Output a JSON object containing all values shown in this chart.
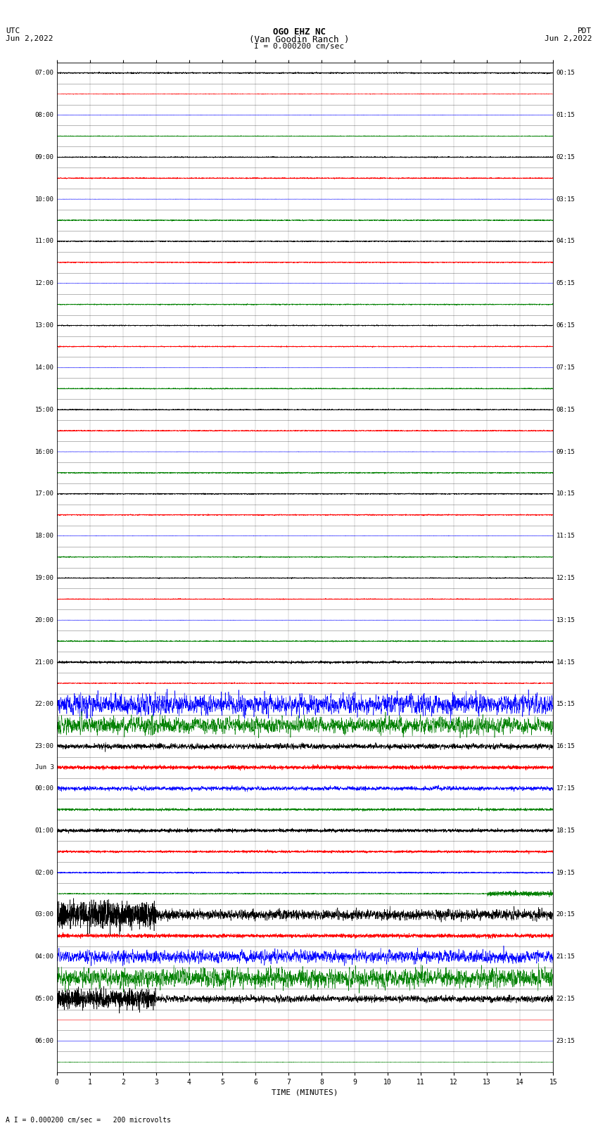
{
  "title_line1": "OGO EHZ NC",
  "title_line2": "(Van Goodin Ranch )",
  "scale_text": "I = 0.000200 cm/sec",
  "bottom_text": "A I = 0.000200 cm/sec =   200 microvolts",
  "utc_label": "UTC",
  "utc_date": "Jun 2,2022",
  "pdt_label": "PDT",
  "pdt_date": "Jun 2,2022",
  "xlabel": "TIME (MINUTES)",
  "xlim": [
    0,
    15
  ],
  "xticks": [
    0,
    1,
    2,
    3,
    4,
    5,
    6,
    7,
    8,
    9,
    10,
    11,
    12,
    13,
    14,
    15
  ],
  "num_rows": 48,
  "bg_color": "#ffffff",
  "grid_color": "#999999",
  "left_labels_utc": [
    "07:00",
    "",
    "08:00",
    "",
    "09:00",
    "",
    "10:00",
    "",
    "11:00",
    "",
    "12:00",
    "",
    "13:00",
    "",
    "14:00",
    "",
    "15:00",
    "",
    "16:00",
    "",
    "17:00",
    "",
    "18:00",
    "",
    "19:00",
    "",
    "20:00",
    "",
    "21:00",
    "",
    "22:00",
    "",
    "23:00",
    "Jun 3",
    "00:00",
    "",
    "01:00",
    "",
    "02:00",
    "",
    "03:00",
    "",
    "04:00",
    "",
    "05:00",
    "",
    "06:00",
    ""
  ],
  "right_labels_pdt": [
    "00:15",
    "",
    "01:15",
    "",
    "02:15",
    "",
    "03:15",
    "",
    "04:15",
    "",
    "05:15",
    "",
    "06:15",
    "",
    "07:15",
    "",
    "08:15",
    "",
    "09:15",
    "",
    "10:15",
    "",
    "11:15",
    "",
    "12:15",
    "",
    "13:15",
    "",
    "14:15",
    "",
    "15:15",
    "",
    "16:15",
    "",
    "17:15",
    "",
    "18:15",
    "",
    "19:15",
    "",
    "20:15",
    "",
    "21:15",
    "",
    "22:15",
    "",
    "23:15",
    ""
  ]
}
